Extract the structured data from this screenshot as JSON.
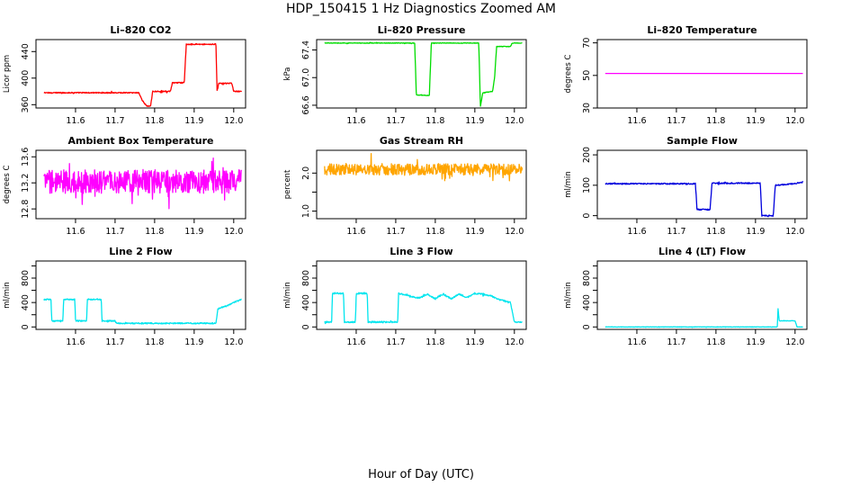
{
  "page": {
    "title": "HDP_150415  1 Hz Diagnostics Zoomed AM",
    "xlabel": "Hour of Day (UTC)"
  },
  "chart_data": [
    {
      "type": "line",
      "title": "Li–820 CO2",
      "ylabel": "Licor ppm",
      "color": "#ff0000",
      "xlim": [
        11.5,
        12.03
      ],
      "ylim": [
        355,
        458
      ],
      "xticks": [
        11.6,
        11.7,
        11.8,
        11.9,
        12.0
      ],
      "xtick_labels": [
        "11.6",
        "11.7",
        "11.8",
        "11.9",
        "12.0"
      ],
      "yticks": [
        360,
        400,
        440
      ],
      "ytick_labels": [
        "360",
        "400",
        "440"
      ],
      "noise": 0.8,
      "series": [
        {
          "values": [
            [
              11.52,
              378
            ],
            [
              11.76,
              378
            ],
            [
              11.77,
              365
            ],
            [
              11.78,
              358
            ],
            [
              11.79,
              358
            ],
            [
              11.795,
              380
            ],
            [
              11.84,
              380
            ],
            [
              11.845,
              393
            ],
            [
              11.875,
              393
            ],
            [
              11.88,
              451
            ],
            [
              11.955,
              451
            ],
            [
              11.958,
              380
            ],
            [
              11.962,
              392
            ],
            [
              11.995,
              392
            ],
            [
              12.0,
              380
            ],
            [
              12.02,
              380
            ]
          ]
        }
      ]
    },
    {
      "type": "line",
      "title": "Li–820 Pressure",
      "ylabel": "kPa",
      "color": "#00dd00",
      "xlim": [
        11.5,
        12.03
      ],
      "ylim": [
        66.56,
        67.55
      ],
      "xticks": [
        11.6,
        11.7,
        11.8,
        11.9,
        12.0
      ],
      "xtick_labels": [
        "11.6",
        "11.7",
        "11.8",
        "11.9",
        "12.0"
      ],
      "yticks": [
        66.6,
        67.0,
        67.4
      ],
      "ytick_labels": [
        "66.6",
        "67.0",
        "67.4"
      ],
      "noise": 0.004,
      "series": [
        {
          "values": [
            [
              11.52,
              67.5
            ],
            [
              11.748,
              67.5
            ],
            [
              11.752,
              66.75
            ],
            [
              11.785,
              66.74
            ],
            [
              11.79,
              67.5
            ],
            [
              11.91,
              67.5
            ],
            [
              11.914,
              66.58
            ],
            [
              11.92,
              66.78
            ],
            [
              11.945,
              66.8
            ],
            [
              11.95,
              67.0
            ],
            [
              11.955,
              67.45
            ],
            [
              11.99,
              67.45
            ],
            [
              11.995,
              67.5
            ],
            [
              12.02,
              67.5
            ]
          ]
        }
      ]
    },
    {
      "type": "line",
      "title": "Li–820 Temperature",
      "ylabel": "degrees C",
      "color": "#ff00ff",
      "xlim": [
        11.5,
        12.03
      ],
      "ylim": [
        30,
        72
      ],
      "xticks": [
        11.6,
        11.7,
        11.8,
        11.9,
        12.0
      ],
      "xtick_labels": [
        "11.6",
        "11.7",
        "11.8",
        "11.9",
        "12.0"
      ],
      "yticks": [
        30,
        50,
        70
      ],
      "ytick_labels": [
        "30",
        "50",
        "70"
      ],
      "noise": 0,
      "series": [
        {
          "values": [
            [
              11.52,
              51.2
            ],
            [
              12.02,
              51.2
            ]
          ]
        }
      ]
    },
    {
      "type": "line",
      "title": "Ambient Box Temperature",
      "ylabel": "degrees C",
      "color": "#ff00ff",
      "xlim": [
        11.5,
        12.03
      ],
      "ylim": [
        12.65,
        13.7
      ],
      "xticks": [
        11.6,
        11.7,
        11.8,
        11.9,
        12.0
      ],
      "xtick_labels": [
        "11.6",
        "11.7",
        "11.8",
        "11.9",
        "12.0"
      ],
      "yticks": [
        12.8,
        13.2,
        13.6
      ],
      "ytick_labels": [
        "12.8",
        "13.2",
        "13.6"
      ],
      "noise": 0.18,
      "series": [
        {
          "values": [
            [
              11.52,
              13.22
            ],
            [
              12.02,
              13.22
            ]
          ]
        }
      ]
    },
    {
      "type": "line",
      "title": "Gas Stream RH",
      "ylabel": "percent",
      "color": "#ffa500",
      "xlim": [
        11.5,
        12.03
      ],
      "ylim": [
        0.8,
        2.6
      ],
      "xticks": [
        11.6,
        11.7,
        11.8,
        11.9,
        12.0
      ],
      "xtick_labels": [
        "11.6",
        "11.7",
        "11.8",
        "11.9",
        "12.0"
      ],
      "yticks": [
        1.0,
        1.5,
        2.0
      ],
      "ytick_labels": [
        "1.0",
        "",
        "2.0"
      ],
      "noise": 0.15,
      "series": [
        {
          "values": [
            [
              11.52,
              2.1
            ],
            [
              12.02,
              2.1
            ]
          ]
        }
      ]
    },
    {
      "type": "line",
      "title": "Sample Flow",
      "ylabel": "ml/min",
      "color": "#0000dd",
      "xlim": [
        11.5,
        12.03
      ],
      "ylim": [
        -10,
        215
      ],
      "xticks": [
        11.6,
        11.7,
        11.8,
        11.9,
        12.0
      ],
      "xtick_labels": [
        "11.6",
        "11.7",
        "11.8",
        "11.9",
        "12.0"
      ],
      "yticks": [
        0,
        100,
        200
      ],
      "ytick_labels": [
        "0",
        "100",
        "200"
      ],
      "noise": 2,
      "series": [
        {
          "values": [
            [
              11.52,
              105
            ],
            [
              11.748,
              105
            ],
            [
              11.752,
              20
            ],
            [
              11.785,
              20
            ],
            [
              11.79,
              107
            ],
            [
              11.912,
              107
            ],
            [
              11.916,
              0
            ],
            [
              11.945,
              0
            ],
            [
              11.95,
              100
            ],
            [
              11.995,
              105
            ],
            [
              12.02,
              110
            ]
          ]
        }
      ]
    },
    {
      "type": "line",
      "title": "Line 2 Flow",
      "ylabel": "ml/min",
      "color": "#00e5ee",
      "xlim": [
        11.5,
        12.03
      ],
      "ylim": [
        -40,
        1080
      ],
      "xticks": [
        11.6,
        11.7,
        11.8,
        11.9,
        12.0
      ],
      "xtick_labels": [
        "11.6",
        "11.7",
        "11.8",
        "11.9",
        "12.0"
      ],
      "yticks": [
        0,
        200,
        400,
        600,
        800,
        1000
      ],
      "ytick_labels": [
        "0",
        "",
        "400",
        "",
        "800",
        ""
      ],
      "noise": 10,
      "series": [
        {
          "values": [
            [
              11.52,
              450
            ],
            [
              11.538,
              450
            ],
            [
              11.54,
              100
            ],
            [
              11.568,
              100
            ],
            [
              11.57,
              450
            ],
            [
              11.598,
              450
            ],
            [
              11.6,
              100
            ],
            [
              11.628,
              100
            ],
            [
              11.63,
              450
            ],
            [
              11.665,
              450
            ],
            [
              11.667,
              100
            ],
            [
              11.7,
              100
            ],
            [
              11.705,
              60
            ],
            [
              11.955,
              60
            ],
            [
              11.96,
              300
            ],
            [
              11.985,
              350
            ],
            [
              12.0,
              400
            ],
            [
              12.02,
              450
            ]
          ]
        }
      ]
    },
    {
      "type": "line",
      "title": "Line 3 Flow",
      "ylabel": "ml/min",
      "color": "#00e5ee",
      "xlim": [
        11.5,
        12.03
      ],
      "ylim": [
        -40,
        1080
      ],
      "xticks": [
        11.6,
        11.7,
        11.8,
        11.9,
        12.0
      ],
      "xtick_labels": [
        "11.6",
        "11.7",
        "11.8",
        "11.9",
        "12.0"
      ],
      "yticks": [
        0,
        200,
        400,
        600,
        800,
        1000
      ],
      "ytick_labels": [
        "0",
        "",
        "400",
        "",
        "800",
        ""
      ],
      "noise": 12,
      "series": [
        {
          "values": [
            [
              11.52,
              80
            ],
            [
              11.538,
              80
            ],
            [
              11.54,
              550
            ],
            [
              11.568,
              550
            ],
            [
              11.57,
              80
            ],
            [
              11.598,
              80
            ],
            [
              11.6,
              550
            ],
            [
              11.628,
              550
            ],
            [
              11.63,
              80
            ],
            [
              11.665,
              80
            ],
            [
              11.667,
              80
            ],
            [
              11.705,
              80
            ],
            [
              11.707,
              550
            ],
            [
              11.74,
              500
            ],
            [
              11.76,
              470
            ],
            [
              11.78,
              540
            ],
            [
              11.8,
              460
            ],
            [
              11.82,
              540
            ],
            [
              11.84,
              460
            ],
            [
              11.86,
              540
            ],
            [
              11.88,
              480
            ],
            [
              11.9,
              550
            ],
            [
              11.92,
              540
            ],
            [
              11.94,
              510
            ],
            [
              11.96,
              450
            ],
            [
              11.99,
              400
            ],
            [
              12.0,
              80
            ],
            [
              12.02,
              80
            ]
          ]
        }
      ]
    },
    {
      "type": "line",
      "title": "Line 4 (LT) Flow",
      "ylabel": "ml/min",
      "color": "#00e5ee",
      "xlim": [
        11.5,
        12.03
      ],
      "ylim": [
        -40,
        1080
      ],
      "xticks": [
        11.6,
        11.7,
        11.8,
        11.9,
        12.0
      ],
      "xtick_labels": [
        "11.6",
        "11.7",
        "11.8",
        "11.9",
        "12.0"
      ],
      "yticks": [
        0,
        200,
        400,
        600,
        800,
        1000
      ],
      "ytick_labels": [
        "0",
        "",
        "400",
        "",
        "800",
        ""
      ],
      "noise": 3,
      "series": [
        {
          "values": [
            [
              11.52,
              0
            ],
            [
              11.955,
              0
            ],
            [
              11.957,
              300
            ],
            [
              11.96,
              100
            ],
            [
              12.0,
              100
            ],
            [
              12.005,
              0
            ],
            [
              12.02,
              0
            ]
          ]
        }
      ]
    }
  ]
}
